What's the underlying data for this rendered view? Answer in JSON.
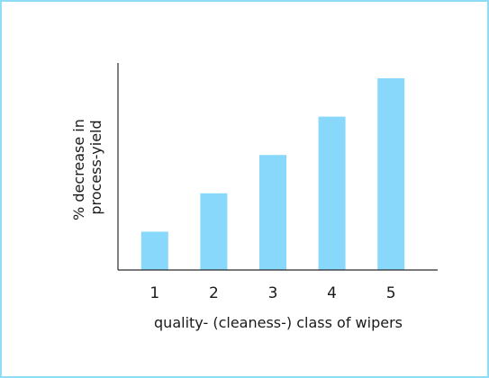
{
  "chart_data": {
    "type": "bar",
    "categories": [
      "1",
      "2",
      "3",
      "4",
      "5"
    ],
    "values": [
      1,
      2,
      3,
      4,
      5
    ],
    "title": "",
    "xlabel": "quality- (cleaness-) class of wipers",
    "ylabel_lines": [
      "% decrease in",
      "process-yield"
    ],
    "ylim": [
      0,
      5.4
    ],
    "grid": false,
    "legend": "none",
    "y_ticks_shown": false
  },
  "colors": {
    "bar": "#88d8fb",
    "frame_border": "#8fdcf7",
    "axis": "#2b2b2b",
    "text": "#1a1a1a"
  }
}
